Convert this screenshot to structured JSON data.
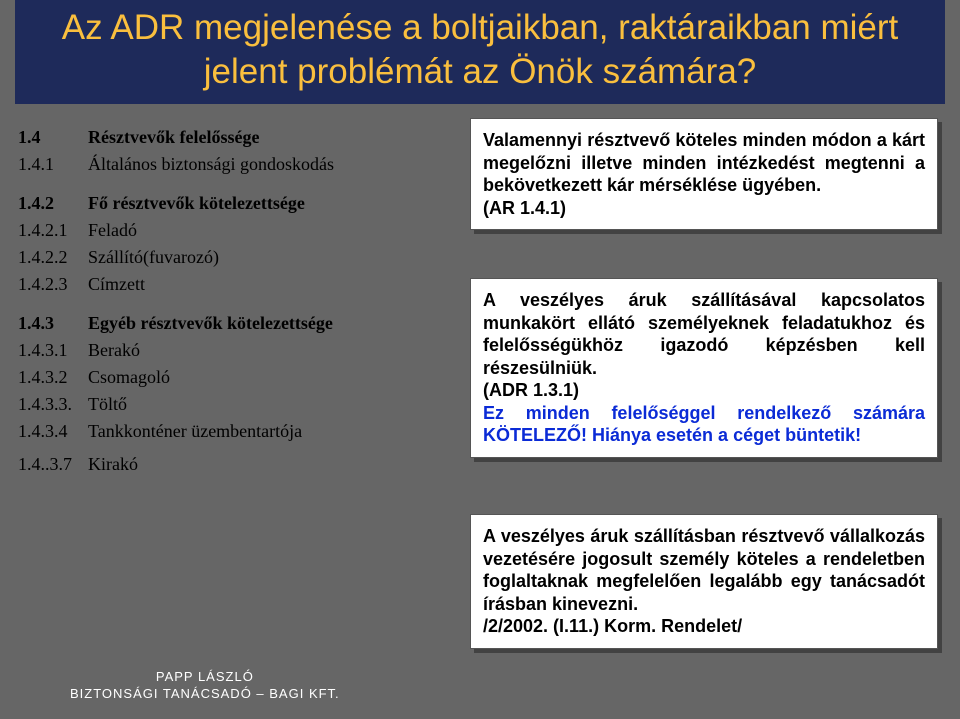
{
  "title": "Az ADR megjelenése a boltjaikban, raktáraikban miért jelent problémát az Önök számára?",
  "table": [
    {
      "num": "1.4",
      "txt": "Résztvevők felelőssége",
      "bold": true
    },
    {
      "num": "1.4.1",
      "txt": "Általános biztonsági gondoskodás"
    },
    {
      "spacer": true
    },
    {
      "num": "1.4.2",
      "txt": "Fő résztvevők kötelezettsége",
      "bold": true
    },
    {
      "num": "1.4.2.1",
      "txt": "Feladó"
    },
    {
      "num": "1.4.2.2",
      "txt": "Szállító(fuvarozó)"
    },
    {
      "num": "1.4.2.3",
      "txt": "Címzett"
    },
    {
      "spacer": true
    },
    {
      "num": "1.4.3",
      "txt": "Egyéb résztvevők kötelezettsége",
      "bold": true
    },
    {
      "num": "1.4.3.1",
      "txt": "Berakó"
    },
    {
      "num": "1.4.3.2",
      "txt": "Csomagoló"
    },
    {
      "num": "1.4.3.3.",
      "txt": "Töltő"
    },
    {
      "num": "1.4.3.4",
      "txt": "Tankkonténer üzembentartója"
    },
    {
      "spacer_small": true
    },
    {
      "num": "1.4..3.7",
      "txt": "Kirakó"
    }
  ],
  "box1_p1": "Valamennyi résztvevő köteles minden módon a kárt megelőzni illetve minden intézkedést megtenni a bekövetkezett kár mérséklése ügyében.",
  "box1_p2": "(AR 1.4.1)",
  "box2_p1": "A veszélyes áruk szállításával kapcsolatos munkakört ellátó személyeknek feladatukhoz és felelősségükhöz igazodó képzésben kell részesülniük.",
  "box2_p2": "(ADR 1.3.1)",
  "box2_p3": "Ez minden felelőséggel rendelkező számára KÖTELEZŐ! Hiánya esetén a céget büntetik!",
  "box3_p1": "A veszélyes áruk szállításban résztvevő vállalkozás vezetésére jogosult személy köteles a rendeletben foglaltaknak megfelelően legalább egy tanácsadót írásban kinevezni.",
  "box3_p2": "/2/2002. (I.11.) Korm. Rendelet/",
  "footer_l1": "PAPP LÁSZLÓ",
  "footer_l2": "BIZTONSÁGI TANÁCSADÓ – BAGI KFT.",
  "colors": {
    "title_bg": "#1e2a5a",
    "title_fg": "#fabf3e",
    "slide_bg": "#666666",
    "box_bg": "#ffffff",
    "blue_text": "#0b2bd6"
  }
}
